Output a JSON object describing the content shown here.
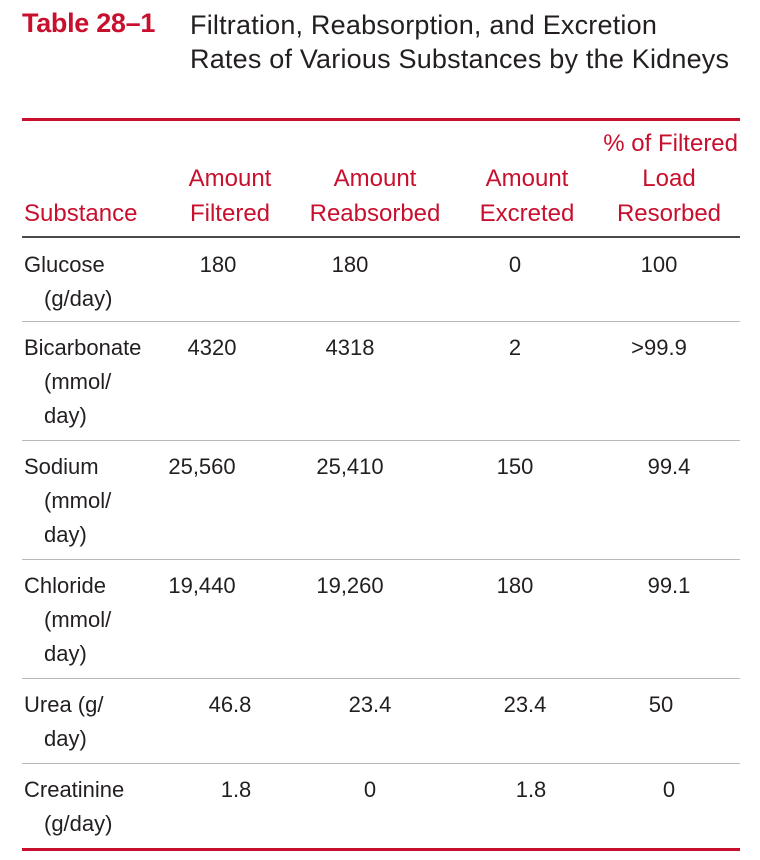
{
  "table": {
    "number": "Table 28–1",
    "title": "Filtration, Reabsorption, and Excretion Rates of Various Substances by the Kidneys",
    "headers": {
      "substance": "Substance",
      "filtered": [
        "Amount",
        "Filtered"
      ],
      "reabsorbed": [
        "Amount",
        "Reabsorbed"
      ],
      "excreted": [
        "Amount",
        "Excreted"
      ],
      "pct": [
        "% of Filtered",
        "Load",
        "Resorbed"
      ]
    },
    "rows": [
      {
        "substance": [
          "Glucose",
          "(g/day)"
        ],
        "filtered": "180",
        "reabsorbed": "180",
        "excreted": "0",
        "pct": "100"
      },
      {
        "substance": [
          "Bicarbonate",
          "(mmol/",
          "day)"
        ],
        "filtered": "4320",
        "reabsorbed": "4318",
        "excreted": "2",
        "pct": ">99.9"
      },
      {
        "substance": [
          "Sodium",
          "(mmol/",
          "day)"
        ],
        "filtered": "25,560",
        "reabsorbed": "25,410",
        "excreted": "150",
        "pct": "99.4"
      },
      {
        "substance": [
          "Chloride",
          "(mmol/",
          "day)"
        ],
        "filtered": "19,440",
        "reabsorbed": "19,260",
        "excreted": "180",
        "pct": "99.1"
      },
      {
        "substance": [
          "Urea (g/",
          "day)"
        ],
        "filtered": "46.8",
        "reabsorbed": "23.4",
        "excreted": "23.4",
        "pct": "50"
      },
      {
        "substance": [
          "Creatinine",
          "(g/day)"
        ],
        "filtered": "1.8",
        "reabsorbed": "0",
        "excreted": "1.8",
        "pct": "0"
      }
    ]
  }
}
